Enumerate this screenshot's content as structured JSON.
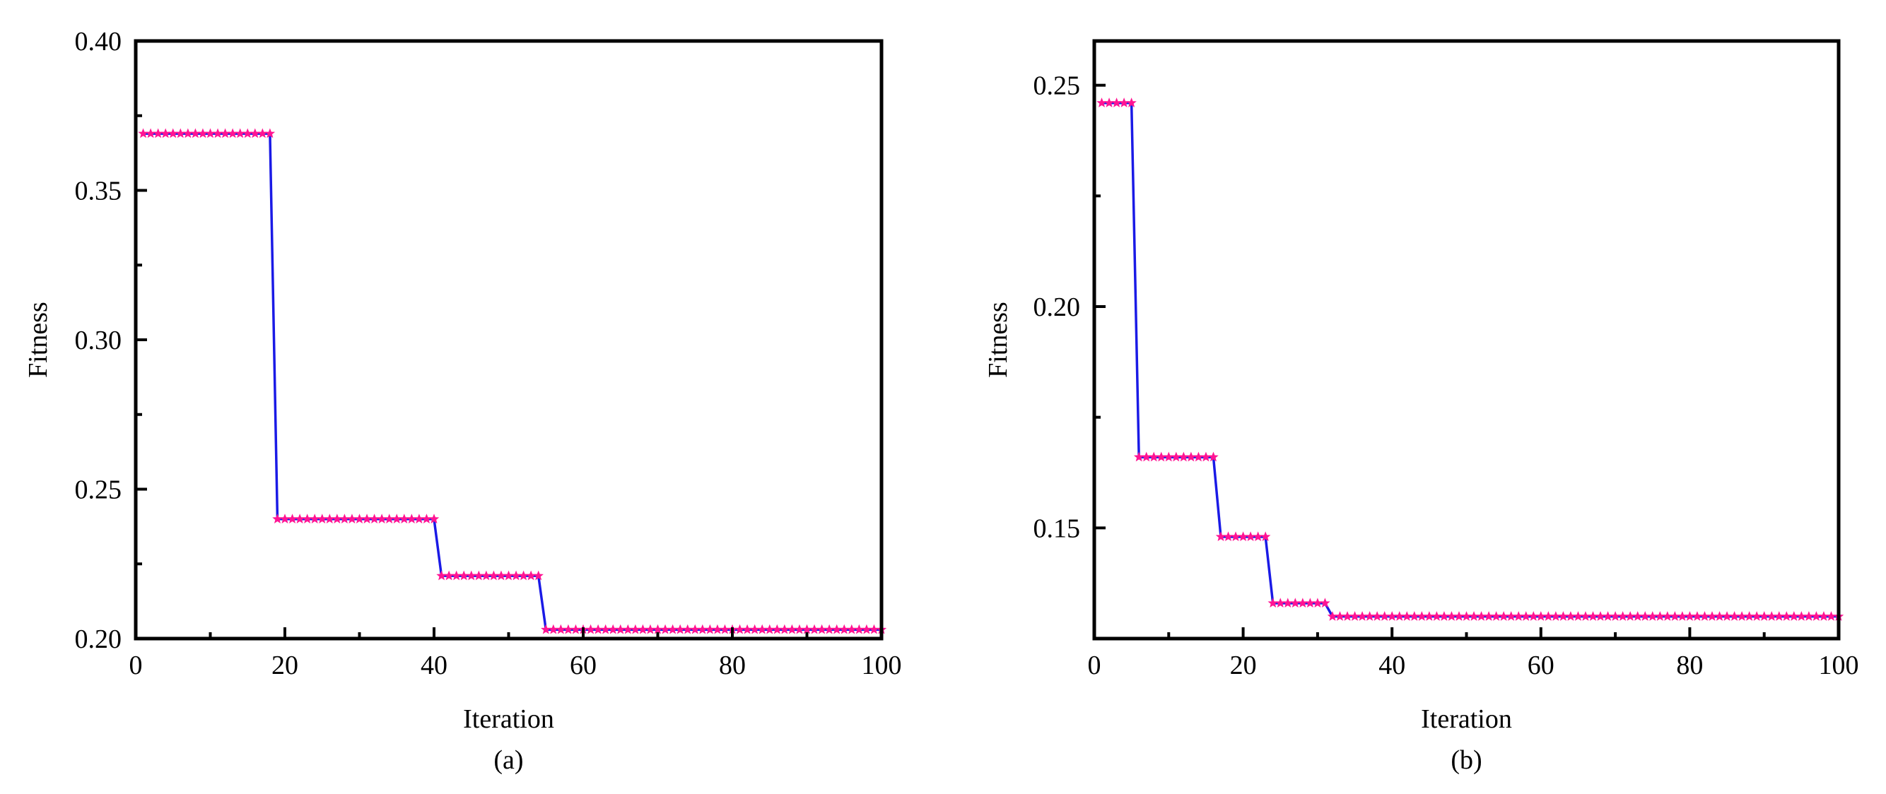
{
  "colors": {
    "line": "#1a1ae6",
    "marker": "#ff1493",
    "axis": "#000000",
    "background": "#ffffff"
  },
  "chart_data": [
    {
      "type": "line",
      "panel_label": "(a)",
      "xlabel": "Iteration",
      "ylabel": "Fitness",
      "xlim": [
        0,
        100
      ],
      "ylim": [
        0.2,
        0.4
      ],
      "xticks": [
        0,
        20,
        40,
        60,
        80,
        100
      ],
      "xtick_labels": [
        "0",
        "20",
        "40",
        "60",
        "80",
        "100"
      ],
      "yticks": [
        0.2,
        0.25,
        0.3,
        0.35,
        0.4
      ],
      "ytick_labels": [
        "0.20",
        "0.25",
        "0.30",
        "0.35",
        "0.40"
      ],
      "grid": false,
      "legend": "none",
      "marker": "star",
      "segments": [
        {
          "from": 1,
          "to": 18,
          "value": 0.369
        },
        {
          "from": 19,
          "to": 40,
          "value": 0.24
        },
        {
          "from": 41,
          "to": 54,
          "value": 0.221
        },
        {
          "from": 55,
          "to": 100,
          "value": 0.203
        }
      ]
    },
    {
      "type": "line",
      "panel_label": "(b)",
      "xlabel": "Iteration",
      "ylabel": "Fitness",
      "xlim": [
        0,
        100
      ],
      "ylim": [
        0.125,
        0.26
      ],
      "xticks": [
        0,
        20,
        40,
        60,
        80,
        100
      ],
      "xtick_labels": [
        "0",
        "20",
        "40",
        "60",
        "80",
        "100"
      ],
      "yticks": [
        0.15,
        0.2,
        0.25
      ],
      "ytick_labels": [
        "0.15",
        "0.20",
        "0.25"
      ],
      "grid": false,
      "legend": "none",
      "marker": "star",
      "segments": [
        {
          "from": 1,
          "to": 5,
          "value": 0.246
        },
        {
          "from": 6,
          "to": 16,
          "value": 0.166
        },
        {
          "from": 17,
          "to": 23,
          "value": 0.148
        },
        {
          "from": 24,
          "to": 31,
          "value": 0.133
        },
        {
          "from": 32,
          "to": 100,
          "value": 0.13
        }
      ]
    }
  ]
}
